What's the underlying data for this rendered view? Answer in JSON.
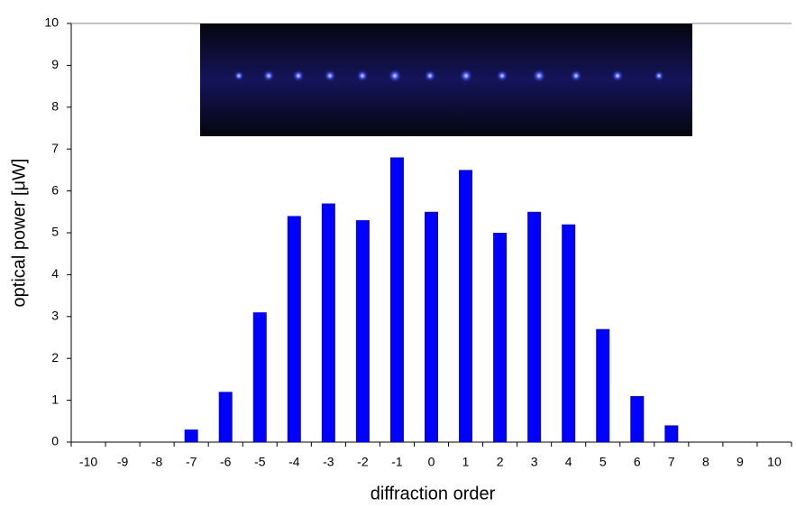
{
  "chart_data": {
    "type": "bar",
    "x_label": "diffraction order",
    "y_label": "optical power [μW]",
    "categories": [
      "-10",
      "-9",
      "-8",
      "-7",
      "-6",
      "-5",
      "-4",
      "-3",
      "-2",
      "-1",
      "0",
      "1",
      "2",
      "3",
      "4",
      "5",
      "6",
      "7",
      "8",
      "9",
      "10"
    ],
    "values": [
      0,
      0,
      0,
      0.3,
      1.2,
      3.1,
      5.4,
      5.7,
      5.3,
      6.8,
      5.5,
      6.5,
      5.0,
      5.5,
      5.2,
      2.7,
      1.1,
      0.4,
      0,
      0,
      0
    ],
    "color": "#0000ff",
    "ylim": [
      0,
      10
    ],
    "yticks": [
      0,
      1,
      2,
      3,
      4,
      5,
      6,
      7,
      8,
      9,
      10
    ],
    "grid": false
  }
}
